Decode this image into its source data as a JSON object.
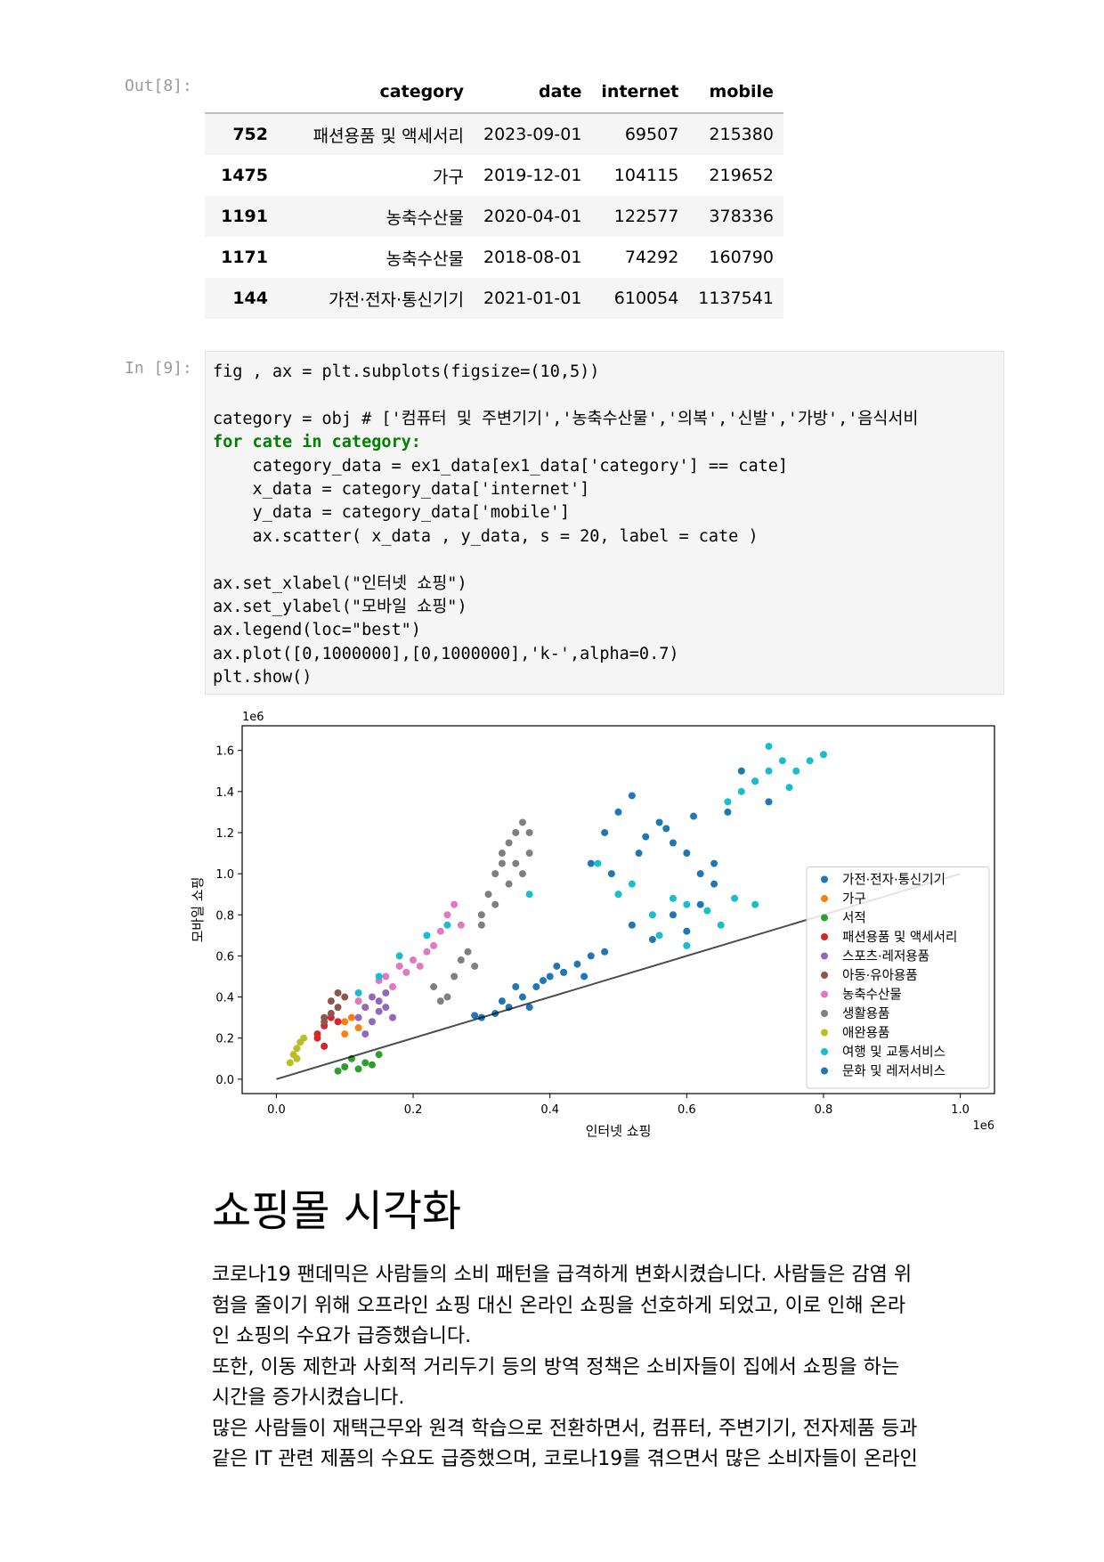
{
  "out_prompt": "Out[8]:",
  "in_prompt": "In [9]:",
  "dataframe": {
    "columns": [
      "category",
      "date",
      "internet",
      "mobile"
    ],
    "rows": [
      {
        "index": "752",
        "category": "패션용품 및 액세서리",
        "date": "2023-09-01",
        "internet": "69507",
        "mobile": "215380"
      },
      {
        "index": "1475",
        "category": "가구",
        "date": "2019-12-01",
        "internet": "104115",
        "mobile": "219652"
      },
      {
        "index": "1191",
        "category": "농축수산물",
        "date": "2020-04-01",
        "internet": "122577",
        "mobile": "378336"
      },
      {
        "index": "1171",
        "category": "농축수산물",
        "date": "2018-08-01",
        "internet": "74292",
        "mobile": "160790"
      },
      {
        "index": "144",
        "category": "가전·전자·통신기기",
        "date": "2021-01-01",
        "internet": "610054",
        "mobile": "1137541"
      }
    ]
  },
  "code_lines": [
    "fig , ax = plt.subplots(figsize=(10,5))",
    "",
    "category = obj # ['컴퓨터 및 주변기기','농축수산물','의복','신발','가방','음식서비",
    "for cate in category:",
    "    category_data = ex1_data[ex1_data['category'] == cate]",
    "    x_data = category_data['internet']",
    "    y_data = category_data['mobile']",
    "    ax.scatter( x_data , y_data, s = 20, label = cate )",
    "",
    "ax.set_xlabel(\"인터넷 쇼핑\")",
    "ax.set_ylabel(\"모바일 쇼핑\")",
    "ax.legend(loc=\"best\")",
    "ax.plot([0,1000000],[0,1000000],'k-',alpha=0.7)",
    "plt.show()"
  ],
  "chart_data": {
    "type": "scatter",
    "xlabel": "인터넷 쇼핑",
    "ylabel": "모바일 쇼핑",
    "x_offset_label": "1e6",
    "y_offset_label": "1e6",
    "xlim": [
      -0.05,
      1.05
    ],
    "ylim": [
      -0.07,
      1.72
    ],
    "x_ticks": [
      "0.0",
      "0.2",
      "0.4",
      "0.6",
      "0.8",
      "1.0"
    ],
    "y_ticks": [
      "0.0",
      "0.2",
      "0.4",
      "0.6",
      "0.8",
      "1.0",
      "1.2",
      "1.4",
      "1.6"
    ],
    "legend_position": "lower-right",
    "reference_line": {
      "x": [
        0,
        1
      ],
      "y": [
        0,
        1
      ],
      "color": "#000000",
      "alpha": 0.7
    },
    "series": [
      {
        "name": "가전·전자·통신기기",
        "color": "#1f77b4",
        "points": [
          [
            0.46,
            1.05
          ],
          [
            0.48,
            1.2
          ],
          [
            0.5,
            1.3
          ],
          [
            0.52,
            1.38
          ],
          [
            0.54,
            1.18
          ],
          [
            0.56,
            1.25
          ],
          [
            0.58,
            1.15
          ],
          [
            0.6,
            1.1
          ],
          [
            0.62,
            1.0
          ],
          [
            0.64,
            1.05
          ],
          [
            0.66,
            1.3
          ],
          [
            0.68,
            1.5
          ],
          [
            0.7,
            1.45
          ],
          [
            0.72,
            1.35
          ],
          [
            0.5,
            0.9
          ],
          [
            0.52,
            0.75
          ],
          [
            0.55,
            0.68
          ],
          [
            0.58,
            0.8
          ],
          [
            0.6,
            0.72
          ],
          [
            0.62,
            0.85
          ],
          [
            0.64,
            0.95
          ],
          [
            0.53,
            1.1
          ],
          [
            0.57,
            1.22
          ],
          [
            0.61,
            1.28
          ],
          [
            0.49,
            1.0
          ]
        ]
      },
      {
        "name": "가구",
        "color": "#ff7f0e",
        "points": [
          [
            0.1,
            0.22
          ],
          [
            0.11,
            0.3
          ],
          [
            0.12,
            0.38
          ],
          [
            0.13,
            0.35
          ],
          [
            0.1,
            0.28
          ],
          [
            0.12,
            0.25
          ]
        ]
      },
      {
        "name": "서적",
        "color": "#2ca02c",
        "points": [
          [
            0.1,
            0.06
          ],
          [
            0.12,
            0.05
          ],
          [
            0.13,
            0.08
          ],
          [
            0.14,
            0.07
          ],
          [
            0.11,
            0.1
          ],
          [
            0.15,
            0.12
          ],
          [
            0.09,
            0.04
          ]
        ]
      },
      {
        "name": "패션용품 및 액세서리",
        "color": "#d62728",
        "points": [
          [
            0.06,
            0.2
          ],
          [
            0.07,
            0.26
          ],
          [
            0.08,
            0.3
          ],
          [
            0.06,
            0.22
          ],
          [
            0.07,
            0.16
          ],
          [
            0.09,
            0.28
          ]
        ]
      },
      {
        "name": "스포츠·레저용품",
        "color": "#9467bd",
        "points": [
          [
            0.13,
            0.35
          ],
          [
            0.14,
            0.4
          ],
          [
            0.15,
            0.38
          ],
          [
            0.16,
            0.42
          ],
          [
            0.12,
            0.3
          ],
          [
            0.14,
            0.28
          ],
          [
            0.15,
            0.33
          ],
          [
            0.13,
            0.22
          ],
          [
            0.16,
            0.35
          ],
          [
            0.17,
            0.3
          ]
        ]
      },
      {
        "name": "아동·유아용품",
        "color": "#8c564b",
        "points": [
          [
            0.07,
            0.3
          ],
          [
            0.08,
            0.38
          ],
          [
            0.09,
            0.35
          ],
          [
            0.08,
            0.32
          ],
          [
            0.1,
            0.4
          ],
          [
            0.09,
            0.42
          ],
          [
            0.07,
            0.28
          ]
        ]
      },
      {
        "name": "농축수산물",
        "color": "#e377c2",
        "points": [
          [
            0.12,
            0.38
          ],
          [
            0.15,
            0.48
          ],
          [
            0.18,
            0.55
          ],
          [
            0.2,
            0.58
          ],
          [
            0.22,
            0.62
          ],
          [
            0.24,
            0.72
          ],
          [
            0.25,
            0.8
          ],
          [
            0.26,
            0.85
          ],
          [
            0.23,
            0.65
          ],
          [
            0.21,
            0.55
          ],
          [
            0.19,
            0.52
          ],
          [
            0.17,
            0.45
          ],
          [
            0.27,
            0.75
          ],
          [
            0.16,
            0.5
          ]
        ]
      },
      {
        "name": "생활용품",
        "color": "#7f7f7f",
        "points": [
          [
            0.23,
            0.45
          ],
          [
            0.24,
            0.38
          ],
          [
            0.25,
            0.4
          ],
          [
            0.26,
            0.5
          ],
          [
            0.27,
            0.58
          ],
          [
            0.28,
            0.62
          ],
          [
            0.29,
            0.55
          ],
          [
            0.3,
            0.8
          ],
          [
            0.31,
            0.9
          ],
          [
            0.32,
            1.0
          ],
          [
            0.33,
            1.1
          ],
          [
            0.34,
            1.15
          ],
          [
            0.35,
            1.2
          ],
          [
            0.36,
            1.25
          ],
          [
            0.37,
            1.1
          ],
          [
            0.36,
            1.0
          ],
          [
            0.34,
            0.95
          ],
          [
            0.32,
            0.85
          ],
          [
            0.3,
            0.75
          ],
          [
            0.33,
            1.05
          ],
          [
            0.35,
            1.05
          ],
          [
            0.37,
            1.2
          ]
        ]
      },
      {
        "name": "애완용품",
        "color": "#bcbd22",
        "points": [
          [
            0.02,
            0.08
          ],
          [
            0.025,
            0.12
          ],
          [
            0.03,
            0.15
          ],
          [
            0.035,
            0.18
          ],
          [
            0.04,
            0.2
          ],
          [
            0.03,
            0.1
          ]
        ]
      },
      {
        "name": "여행 및 교통서비스",
        "color": "#17becf",
        "points": [
          [
            0.12,
            0.42
          ],
          [
            0.15,
            0.5
          ],
          [
            0.18,
            0.6
          ],
          [
            0.22,
            0.7
          ],
          [
            0.25,
            0.75
          ],
          [
            0.37,
            0.9
          ],
          [
            0.47,
            1.05
          ],
          [
            0.5,
            0.9
          ],
          [
            0.52,
            0.95
          ],
          [
            0.56,
            0.7
          ],
          [
            0.58,
            0.88
          ],
          [
            0.6,
            0.85
          ],
          [
            0.63,
            0.82
          ],
          [
            0.65,
            0.75
          ],
          [
            0.67,
            0.88
          ],
          [
            0.7,
            0.85
          ],
          [
            0.66,
            1.35
          ],
          [
            0.68,
            1.4
          ],
          [
            0.7,
            1.45
          ],
          [
            0.72,
            1.5
          ],
          [
            0.74,
            1.55
          ],
          [
            0.76,
            1.5
          ],
          [
            0.78,
            1.55
          ],
          [
            0.8,
            1.58
          ],
          [
            0.72,
            1.62
          ],
          [
            0.75,
            1.42
          ],
          [
            0.6,
            0.65
          ],
          [
            0.55,
            0.8
          ]
        ]
      },
      {
        "name": "문화 및 레저서비스",
        "color": "#1f77b4",
        "points": [
          [
            0.3,
            0.3
          ],
          [
            0.32,
            0.32
          ],
          [
            0.34,
            0.35
          ],
          [
            0.36,
            0.4
          ],
          [
            0.38,
            0.45
          ],
          [
            0.4,
            0.5
          ],
          [
            0.42,
            0.52
          ],
          [
            0.44,
            0.56
          ],
          [
            0.46,
            0.6
          ],
          [
            0.48,
            0.62
          ],
          [
            0.35,
            0.45
          ],
          [
            0.33,
            0.38
          ],
          [
            0.41,
            0.55
          ],
          [
            0.39,
            0.48
          ],
          [
            0.37,
            0.35
          ],
          [
            0.45,
            0.5
          ],
          [
            0.29,
            0.31
          ]
        ]
      }
    ]
  },
  "markdown": {
    "heading": "쇼핑몰 시각화",
    "lines": [
      "코로나19 팬데믹은 사람들의 소비 패턴을 급격하게 변화시켰습니다. 사람들은 감염 위",
      "험을 줄이기 위해 오프라인 쇼핑 대신 온라인 쇼핑을 선호하게 되었고, 이로 인해 온라",
      "인 쇼핑의 수요가 급증했습니다.",
      "또한, 이동 제한과 사회적 거리두기 등의 방역 정책은 소비자들이 집에서 쇼핑을 하는",
      "시간을 증가시켰습니다.",
      "많은 사람들이 재택근무와 원격 학습으로 전환하면서, 컴퓨터, 주변기기, 전자제품 등과",
      "같은 IT 관련 제품의 수요도 급증했으며, 코로나19를 겪으면서 많은 소비자들이 온라인"
    ]
  }
}
